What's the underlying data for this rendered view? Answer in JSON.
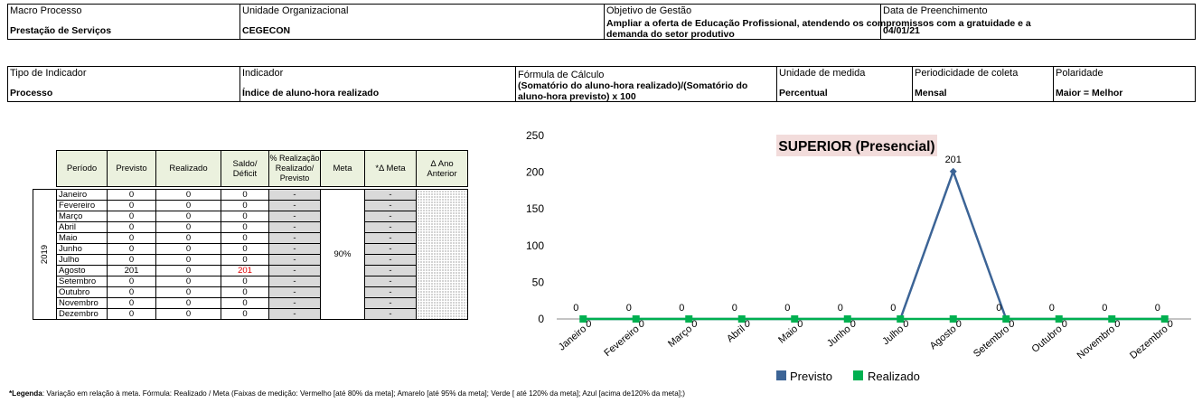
{
  "header1": {
    "macro_label": "Macro Processo",
    "macro_value": "Prestação de Serviços",
    "unit_label": "Unidade Organizacional",
    "unit_value": "CEGECON",
    "goal_label": "Objetivo de Gestão",
    "goal_value_1": "Ampliar a oferta de Educação Profissional, atendendo os compromissos com a gratuidade e a",
    "goal_value_2": "demanda do setor produtivo",
    "date_label": "Data de Preenchimento",
    "date_value": "04/01/21"
  },
  "header2": {
    "type_label": "Tipo de Indicador",
    "type_value": "Processo",
    "ind_label": "Indicador",
    "ind_value": "Índice de aluno-hora realizado",
    "formula_label": "Fórmula de Cálculo",
    "formula_value_1": "(Somatório do aluno-hora realizado)/(Somatório do",
    "formula_value_2": "aluno-hora previsto) x 100",
    "unit_label": "Unidade de medida",
    "unit_value": "Percentual",
    "period_label": "Periodicidade de coleta",
    "period_value": "Mensal",
    "pol_label": "Polaridade",
    "pol_value": "Maior = Melhor"
  },
  "table": {
    "headers": {
      "periodo": "Período",
      "previsto": "Previsto",
      "realizado": "Realizado",
      "saldo_1": "Saldo/",
      "saldo_2": "Déficit",
      "perc_1": "% Realização",
      "perc_2": "Realizado/",
      "perc_3": "Previsto",
      "meta": "Meta",
      "dmeta": "*Δ Meta",
      "dano_1": "Δ Ano",
      "dano_2": "Anterior"
    },
    "year": "2019",
    "meta_value": "90%",
    "rows": [
      {
        "mes": "Janeiro",
        "previsto": "0",
        "realizado": "0",
        "saldo": "0",
        "perc": "-",
        "dmeta": "-"
      },
      {
        "mes": "Fevereiro",
        "previsto": "0",
        "realizado": "0",
        "saldo": "0",
        "perc": "-",
        "dmeta": "-"
      },
      {
        "mes": "Março",
        "previsto": "0",
        "realizado": "0",
        "saldo": "0",
        "perc": "-",
        "dmeta": "-"
      },
      {
        "mes": "Abril",
        "previsto": "0",
        "realizado": "0",
        "saldo": "0",
        "perc": "-",
        "dmeta": "-"
      },
      {
        "mes": "Maio",
        "previsto": "0",
        "realizado": "0",
        "saldo": "0",
        "perc": "-",
        "dmeta": "-"
      },
      {
        "mes": "Junho",
        "previsto": "0",
        "realizado": "0",
        "saldo": "0",
        "perc": "-",
        "dmeta": "-"
      },
      {
        "mes": "Julho",
        "previsto": "0",
        "realizado": "0",
        "saldo": "0",
        "perc": "-",
        "dmeta": "-"
      },
      {
        "mes": "Agosto",
        "previsto": "201",
        "realizado": "0",
        "saldo": "201",
        "perc": "-",
        "dmeta": "-"
      },
      {
        "mes": "Setembro",
        "previsto": "0",
        "realizado": "0",
        "saldo": "0",
        "perc": "-",
        "dmeta": "-"
      },
      {
        "mes": "Outubro",
        "previsto": "0",
        "realizado": "0",
        "saldo": "0",
        "perc": "-",
        "dmeta": "-"
      },
      {
        "mes": "Novembro",
        "previsto": "0",
        "realizado": "0",
        "saldo": "0",
        "perc": "-",
        "dmeta": "-"
      },
      {
        "mes": "Dezembro",
        "previsto": "0",
        "realizado": "0",
        "saldo": "0",
        "perc": "-",
        "dmeta": "-"
      }
    ]
  },
  "chart_data": {
    "type": "line",
    "title": "SUPERIOR (Presencial)",
    "categories": [
      "Janeiro",
      "Fevereiro",
      "Março",
      "Abril",
      "Maio",
      "Junho",
      "Julho",
      "Agosto",
      "Setembro",
      "Outubro",
      "Novembro",
      "Dezembro"
    ],
    "series": [
      {
        "name": "Previsto",
        "values": [
          0,
          0,
          0,
          0,
          0,
          0,
          0,
          201,
          0,
          0,
          0,
          0
        ],
        "color": "#3c6496"
      },
      {
        "name": "Realizado",
        "values": [
          0,
          0,
          0,
          0,
          0,
          0,
          0,
          0,
          0,
          0,
          0,
          0
        ],
        "color": "#00b050"
      }
    ],
    "ylim": [
      0,
      250
    ],
    "yticks": [
      0,
      50,
      100,
      150,
      200,
      250
    ],
    "legend_position": "bottom",
    "title_background": "#f2dcdb"
  },
  "legend_note": {
    "bold": "*Legenda",
    "text": ": Variação em relação à meta. Fórmula: Realizado / Meta (Faixas de medição: Vermelho [até 80% da meta]; Amarelo [até 95% da meta]; Verde [ até 120% da meta]; Azul [acima de120% da meta];)"
  }
}
